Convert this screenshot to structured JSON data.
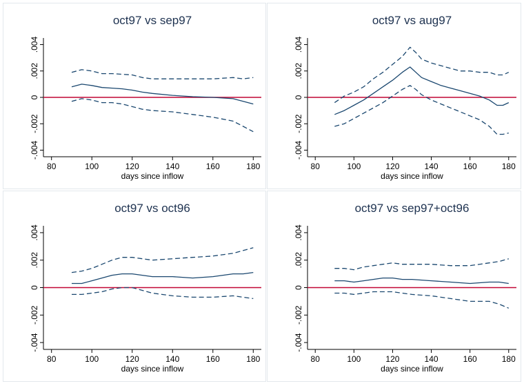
{
  "chart_data": [
    {
      "type": "line",
      "title": "oct97 vs sep97",
      "xlabel": "days since inflow",
      "ylabel": "",
      "xlim": [
        76,
        184
      ],
      "ylim": [
        -0.0045,
        0.0045
      ],
      "xticks": [
        80,
        100,
        120,
        140,
        160,
        180
      ],
      "xtick_labels": [
        "80",
        "100",
        "120",
        "140",
        "160",
        "180"
      ],
      "yticks": [
        -0.004,
        -0.002,
        0,
        0.002,
        0.004
      ],
      "ytick_labels": [
        "-.004",
        "-.002",
        "0",
        ".002",
        ".004"
      ],
      "reference_line": 0,
      "grid": false,
      "legend": "none",
      "series": [
        {
          "style": "solid",
          "x": [
            90,
            95,
            100,
            105,
            110,
            115,
            120,
            125,
            130,
            140,
            150,
            160,
            170,
            175,
            180
          ],
          "values": [
            0.0008,
            0.001,
            0.0009,
            0.00075,
            0.0007,
            0.00065,
            0.00055,
            0.0004,
            0.0003,
            0.00015,
            5e-05,
            0.0,
            -0.0001,
            -0.0003,
            -0.0005
          ]
        },
        {
          "style": "dashed",
          "x": [
            90,
            95,
            100,
            105,
            110,
            115,
            120,
            125,
            130,
            140,
            150,
            160,
            170,
            175,
            180
          ],
          "values": [
            0.0019,
            0.0021,
            0.002,
            0.0018,
            0.0018,
            0.00175,
            0.0017,
            0.0015,
            0.0014,
            0.0014,
            0.0014,
            0.0014,
            0.0015,
            0.0014,
            0.0015
          ]
        },
        {
          "style": "dashed",
          "x": [
            90,
            95,
            100,
            105,
            110,
            115,
            120,
            125,
            130,
            140,
            150,
            160,
            170,
            175,
            180
          ],
          "values": [
            -0.0003,
            -0.0001,
            -0.0002,
            -0.0004,
            -0.0004,
            -0.0005,
            -0.0007,
            -0.0009,
            -0.001,
            -0.0011,
            -0.0013,
            -0.0015,
            -0.0018,
            -0.0022,
            -0.0026
          ]
        }
      ]
    },
    {
      "type": "line",
      "title": "oct97 vs aug97",
      "xlabel": "days since inflow",
      "ylabel": "",
      "xlim": [
        76,
        184
      ],
      "ylim": [
        -0.0045,
        0.0045
      ],
      "xticks": [
        80,
        100,
        120,
        140,
        160,
        180
      ],
      "xtick_labels": [
        "80",
        "100",
        "120",
        "140",
        "160",
        "180"
      ],
      "yticks": [
        -0.004,
        -0.002,
        0,
        0.002,
        0.004
      ],
      "ytick_labels": [
        "-.004",
        "-.002",
        "0",
        ".002",
        ".004"
      ],
      "reference_line": 0,
      "grid": false,
      "legend": "none",
      "series": [
        {
          "style": "solid",
          "x": [
            90,
            95,
            100,
            105,
            110,
            115,
            120,
            125,
            129,
            132,
            135,
            140,
            145,
            150,
            155,
            160,
            165,
            170,
            174,
            177,
            180
          ],
          "values": [
            -0.0013,
            -0.001,
            -0.0006,
            -0.0002,
            0.0003,
            0.0008,
            0.0013,
            0.0019,
            0.0023,
            0.0019,
            0.0015,
            0.0012,
            0.0009,
            0.0007,
            0.0005,
            0.0003,
            0.0001,
            -0.0002,
            -0.0006,
            -0.0006,
            -0.0004
          ]
        },
        {
          "style": "dashed",
          "x": [
            90,
            95,
            100,
            105,
            110,
            115,
            120,
            125,
            129,
            132,
            135,
            140,
            145,
            150,
            155,
            160,
            165,
            170,
            174,
            177,
            180
          ],
          "values": [
            -0.0004,
            0.0001,
            0.0004,
            0.0008,
            0.0014,
            0.0019,
            0.0025,
            0.0031,
            0.0038,
            0.0034,
            0.0029,
            0.0026,
            0.0024,
            0.0022,
            0.002,
            0.002,
            0.0019,
            0.0019,
            0.0017,
            0.0017,
            0.0019
          ]
        },
        {
          "style": "dashed",
          "x": [
            90,
            95,
            100,
            105,
            110,
            115,
            120,
            125,
            129,
            132,
            135,
            140,
            145,
            150,
            155,
            160,
            165,
            170,
            174,
            177,
            180
          ],
          "values": [
            -0.0022,
            -0.002,
            -0.0016,
            -0.0012,
            -0.0008,
            -0.0004,
            0.0001,
            0.0006,
            0.0009,
            0.0006,
            0.0002,
            -0.0002,
            -0.0005,
            -0.0008,
            -0.0011,
            -0.0014,
            -0.0017,
            -0.0022,
            -0.0028,
            -0.0028,
            -0.0027
          ]
        }
      ]
    },
    {
      "type": "line",
      "title": "oct97 vs oct96",
      "xlabel": "days since inflow",
      "ylabel": "",
      "xlim": [
        76,
        184
      ],
      "ylim": [
        -0.0045,
        0.0045
      ],
      "xticks": [
        80,
        100,
        120,
        140,
        160,
        180
      ],
      "xtick_labels": [
        "80",
        "100",
        "120",
        "140",
        "160",
        "180"
      ],
      "yticks": [
        -0.004,
        -0.002,
        0,
        0.002,
        0.004
      ],
      "ytick_labels": [
        "-.004",
        "-.002",
        "0",
        ".002",
        ".004"
      ],
      "reference_line": 0,
      "grid": false,
      "legend": "none",
      "series": [
        {
          "style": "solid",
          "x": [
            90,
            95,
            100,
            105,
            110,
            115,
            120,
            125,
            130,
            140,
            150,
            160,
            170,
            175,
            180
          ],
          "values": [
            0.0003,
            0.0003,
            0.0005,
            0.0007,
            0.0009,
            0.001,
            0.001,
            0.0009,
            0.0008,
            0.0008,
            0.0007,
            0.0008,
            0.001,
            0.001,
            0.0011
          ]
        },
        {
          "style": "dashed",
          "x": [
            90,
            95,
            100,
            105,
            110,
            115,
            120,
            125,
            130,
            140,
            150,
            160,
            170,
            175,
            180
          ],
          "values": [
            0.0011,
            0.0012,
            0.0014,
            0.0017,
            0.002,
            0.0022,
            0.0022,
            0.0021,
            0.002,
            0.0021,
            0.0022,
            0.0023,
            0.0025,
            0.0027,
            0.0029
          ]
        },
        {
          "style": "dashed",
          "x": [
            90,
            95,
            100,
            105,
            110,
            115,
            120,
            125,
            130,
            140,
            150,
            160,
            170,
            175,
            180
          ],
          "values": [
            -0.0005,
            -0.0005,
            -0.0004,
            -0.0003,
            -0.0001,
            0.0,
            0.0,
            -0.0002,
            -0.0004,
            -0.0006,
            -0.0007,
            -0.0007,
            -0.0006,
            -0.0007,
            -0.0008
          ]
        }
      ]
    },
    {
      "type": "line",
      "title": "oct97 vs sep97+oct96",
      "xlabel": "days since inflow",
      "ylabel": "",
      "xlim": [
        76,
        184
      ],
      "ylim": [
        -0.0045,
        0.0045
      ],
      "xticks": [
        80,
        100,
        120,
        140,
        160,
        180
      ],
      "xtick_labels": [
        "80",
        "100",
        "120",
        "140",
        "160",
        "180"
      ],
      "yticks": [
        -0.004,
        -0.002,
        0,
        0.002,
        0.004
      ],
      "ytick_labels": [
        "-.004",
        "-.002",
        "0",
        ".002",
        ".004"
      ],
      "reference_line": 0,
      "grid": false,
      "legend": "none",
      "series": [
        {
          "style": "solid",
          "x": [
            90,
            95,
            100,
            105,
            110,
            115,
            120,
            125,
            130,
            140,
            150,
            160,
            170,
            175,
            180
          ],
          "values": [
            0.0005,
            0.0005,
            0.0004,
            0.0005,
            0.0006,
            0.0007,
            0.0007,
            0.0006,
            0.0006,
            0.0005,
            0.0004,
            0.0003,
            0.0004,
            0.0004,
            0.0003
          ]
        },
        {
          "style": "dashed",
          "x": [
            90,
            95,
            100,
            105,
            110,
            115,
            120,
            125,
            130,
            140,
            150,
            160,
            170,
            175,
            180
          ],
          "values": [
            0.0014,
            0.0014,
            0.0013,
            0.0015,
            0.0016,
            0.0017,
            0.0018,
            0.0017,
            0.0017,
            0.0017,
            0.0016,
            0.0016,
            0.0018,
            0.0019,
            0.0021
          ]
        },
        {
          "style": "dashed",
          "x": [
            90,
            95,
            100,
            105,
            110,
            115,
            120,
            125,
            130,
            140,
            150,
            160,
            170,
            175,
            180
          ],
          "values": [
            -0.0004,
            -0.0004,
            -0.0005,
            -0.0004,
            -0.0003,
            -0.0003,
            -0.0003,
            -0.0004,
            -0.0005,
            -0.0006,
            -0.0008,
            -0.001,
            -0.001,
            -0.0012,
            -0.0015
          ]
        }
      ]
    }
  ],
  "colors": {
    "estimate_line": "#1a476f",
    "band_line": "#1a476f",
    "reference_line": "#c10534",
    "title": "#1e3250",
    "axis": "#000000",
    "panel_border": "#e3e8ec"
  }
}
